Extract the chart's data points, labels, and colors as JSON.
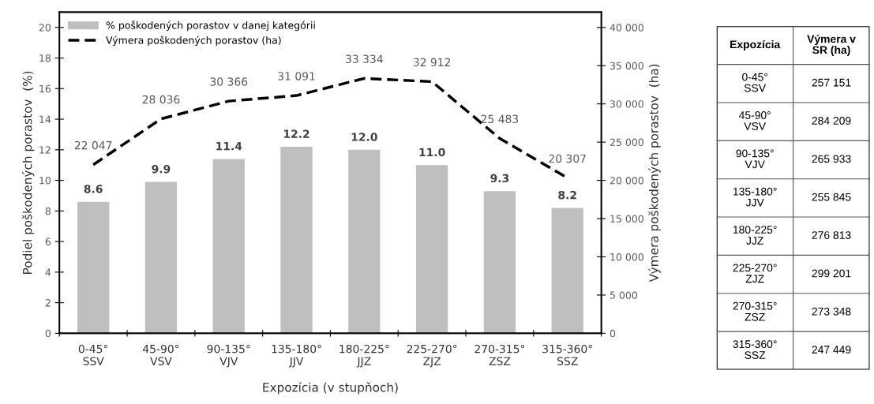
{
  "chart_data": [
    {
      "type": "bar",
      "xlabel": "Expozícia (v stupňoch)",
      "ylabel": "Podiel poškodených porastov  (%)",
      "y2label": "Výmera poškodených porastov  (ha)",
      "categories": [
        "0-45°\nSSV",
        "45-90°\nVSV",
        "90-135°\nVJV",
        "135-180°\nJJV",
        "180-225°\nJJZ",
        "225-270°\nZJZ",
        "270-315°\nZSZ",
        "315-360°\nSSZ"
      ],
      "series": [
        {
          "name": "% poškodených porastov v danej kategórii",
          "type": "bar",
          "color": "#bfbfbf",
          "values": [
            8.6,
            9.9,
            11.4,
            12.2,
            12.0,
            11.0,
            9.3,
            8.2
          ],
          "value_labels": [
            "8.6",
            "9.9",
            "11.4",
            "12.2",
            "12.0",
            "11.0",
            "9.3",
            "8.2"
          ]
        },
        {
          "name": "Výmera poškodených porastov (ha)",
          "type": "line",
          "axis": "y2",
          "color": "#000000",
          "line_style": "dashed",
          "values": [
            22047,
            28036,
            30366,
            31091,
            33334,
            32912,
            25483,
            20307
          ],
          "value_labels": [
            "22 047",
            "28 036",
            "30 366",
            "31 091",
            "33 334",
            "32 912",
            "25 483",
            "20 307"
          ]
        }
      ],
      "ylim": [
        0,
        21
      ],
      "yticks": [
        0,
        2,
        4,
        6,
        8,
        10,
        12,
        14,
        16,
        18,
        20
      ],
      "y2lim": [
        0,
        42000
      ],
      "y2ticks": [
        0,
        {
          "value": 5000,
          "label": "5 000"
        },
        {
          "value": 10000,
          "label": "10 000"
        },
        {
          "value": 15000,
          "label": "15 000"
        },
        {
          "value": 20000,
          "label": "20 000"
        },
        {
          "value": 25000,
          "label": "25 000"
        },
        {
          "value": 30000,
          "label": "30 000"
        },
        {
          "value": 35000,
          "label": "35 000"
        },
        {
          "value": 40000,
          "label": "40 000"
        }
      ],
      "grid": false,
      "legend": "top left"
    },
    {
      "type": "other",
      "xlabel": "Expozícia",
      "ylabel": "Výmera v\nSR (ha)",
      "categories": [
        "0-45°\nSSV",
        "45-90°\nVSV",
        "90-135°\nVJV",
        "135-180°\nJJV",
        "180-225°\nJJZ",
        "225-270°\nZJZ",
        "270-315°\nZSZ",
        "315-360°\nSSZ"
      ],
      "value_labels": [
        "257 151",
        "284 209",
        "265 933",
        "255 845",
        "276 813",
        "299 201",
        "273 348",
        "247 449"
      ]
    }
  ]
}
